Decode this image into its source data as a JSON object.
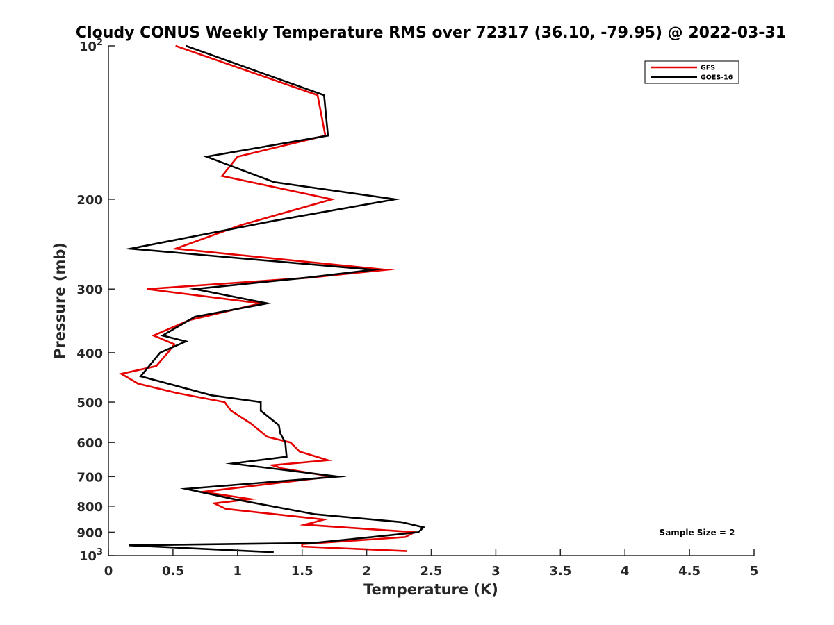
{
  "chart_data": {
    "type": "line",
    "title": "Cloudy CONUS Weekly Temperature RMS over 72317 (36.10, -79.95) @ 2022-03-31",
    "xlabel": "Temperature (K)",
    "ylabel": "Pressure (mb)",
    "xlim": [
      0,
      5
    ],
    "ylim": [
      100,
      1000
    ],
    "y_scale": "log",
    "y_reversed": true,
    "grid": false,
    "legend_position": "top-right",
    "x_ticks": [
      0,
      0.5,
      1,
      1.5,
      2,
      2.5,
      3,
      3.5,
      4,
      4.5,
      5
    ],
    "x_tick_labels": [
      "0",
      "0.5",
      "1",
      "1.5",
      "2",
      "2.5",
      "3",
      "3.5",
      "4",
      "4.5",
      "5"
    ],
    "y_ticks": [
      {
        "value": 100,
        "base": "10",
        "exp": "2"
      },
      {
        "value": 200,
        "label": "200"
      },
      {
        "value": 300,
        "label": "300"
      },
      {
        "value": 400,
        "label": "400"
      },
      {
        "value": 500,
        "label": "500"
      },
      {
        "value": 600,
        "label": "600"
      },
      {
        "value": 700,
        "label": "700"
      },
      {
        "value": 800,
        "label": "800"
      },
      {
        "value": 900,
        "label": "900"
      },
      {
        "value": 1000,
        "base": "10",
        "exp": "3"
      }
    ],
    "annotation": "Sample Size = 2",
    "series": [
      {
        "name": "GFS",
        "color": "#e60000",
        "points": [
          {
            "t": 0.52,
            "p": 100
          },
          {
            "t": 1.62,
            "p": 125
          },
          {
            "t": 1.68,
            "p": 150
          },
          {
            "t": 1.0,
            "p": 165
          },
          {
            "t": 0.88,
            "p": 180
          },
          {
            "t": 1.73,
            "p": 200
          },
          {
            "t": 1.02,
            "p": 225
          },
          {
            "t": 0.52,
            "p": 250
          },
          {
            "t": 2.15,
            "p": 275
          },
          {
            "t": 1.55,
            "p": 285
          },
          {
            "t": 0.3,
            "p": 300
          },
          {
            "t": 1.18,
            "p": 320
          },
          {
            "t": 0.63,
            "p": 345
          },
          {
            "t": 0.35,
            "p": 370
          },
          {
            "t": 0.51,
            "p": 385
          },
          {
            "t": 0.46,
            "p": 400
          },
          {
            "t": 0.37,
            "p": 425
          },
          {
            "t": 0.1,
            "p": 440
          },
          {
            "t": 0.23,
            "p": 460
          },
          {
            "t": 0.53,
            "p": 480
          },
          {
            "t": 0.9,
            "p": 500
          },
          {
            "t": 0.95,
            "p": 520
          },
          {
            "t": 1.1,
            "p": 550
          },
          {
            "t": 1.23,
            "p": 585
          },
          {
            "t": 1.41,
            "p": 600
          },
          {
            "t": 1.48,
            "p": 625
          },
          {
            "t": 1.7,
            "p": 650
          },
          {
            "t": 1.27,
            "p": 665
          },
          {
            "t": 1.35,
            "p": 675
          },
          {
            "t": 1.73,
            "p": 700
          },
          {
            "t": 0.73,
            "p": 750
          },
          {
            "t": 1.1,
            "p": 775
          },
          {
            "t": 0.82,
            "p": 790
          },
          {
            "t": 0.91,
            "p": 810
          },
          {
            "t": 1.67,
            "p": 850
          },
          {
            "t": 1.52,
            "p": 870
          },
          {
            "t": 2.37,
            "p": 900
          },
          {
            "t": 2.3,
            "p": 920
          },
          {
            "t": 1.5,
            "p": 950
          },
          {
            "t": 1.5,
            "p": 960
          },
          {
            "t": 2.31,
            "p": 980
          }
        ]
      },
      {
        "name": "GOES-16",
        "color": "#000000",
        "points": [
          {
            "t": 0.6,
            "p": 100
          },
          {
            "t": 1.67,
            "p": 125
          },
          {
            "t": 1.7,
            "p": 150
          },
          {
            "t": 0.76,
            "p": 165
          },
          {
            "t": 1.28,
            "p": 185
          },
          {
            "t": 2.22,
            "p": 200
          },
          {
            "t": 1.3,
            "p": 220
          },
          {
            "t": 0.17,
            "p": 250
          },
          {
            "t": 2.05,
            "p": 275
          },
          {
            "t": 1.53,
            "p": 285
          },
          {
            "t": 0.67,
            "p": 300
          },
          {
            "t": 1.23,
            "p": 320
          },
          {
            "t": 0.67,
            "p": 340
          },
          {
            "t": 0.42,
            "p": 370
          },
          {
            "t": 0.6,
            "p": 380
          },
          {
            "t": 0.4,
            "p": 400
          },
          {
            "t": 0.25,
            "p": 445
          },
          {
            "t": 0.8,
            "p": 485
          },
          {
            "t": 1.18,
            "p": 500
          },
          {
            "t": 1.18,
            "p": 520
          },
          {
            "t": 1.32,
            "p": 555
          },
          {
            "t": 1.33,
            "p": 575
          },
          {
            "t": 1.37,
            "p": 600
          },
          {
            "t": 1.38,
            "p": 640
          },
          {
            "t": 0.96,
            "p": 660
          },
          {
            "t": 1.78,
            "p": 700
          },
          {
            "t": 0.6,
            "p": 740
          },
          {
            "t": 0.97,
            "p": 775
          },
          {
            "t": 1.6,
            "p": 830
          },
          {
            "t": 2.27,
            "p": 860
          },
          {
            "t": 2.44,
            "p": 880
          },
          {
            "t": 2.4,
            "p": 900
          },
          {
            "t": 2.04,
            "p": 920
          },
          {
            "t": 1.58,
            "p": 945
          },
          {
            "t": 0.16,
            "p": 955
          },
          {
            "t": 1.28,
            "p": 985
          }
        ]
      }
    ]
  }
}
